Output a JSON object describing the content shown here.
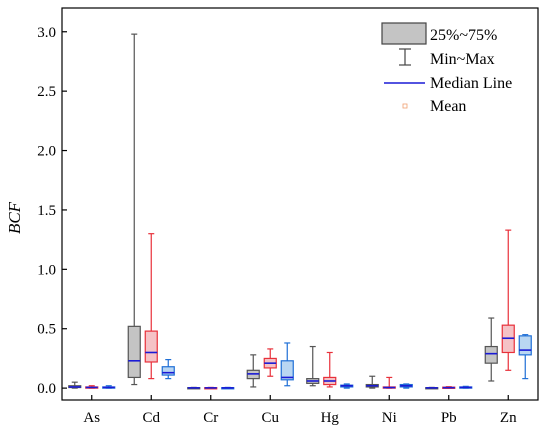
{
  "chart_data": {
    "type": "box",
    "ylabel": "BCF",
    "xlabel": "",
    "ylim": [
      -0.1,
      3.2
    ],
    "yticks": [
      "0.0",
      "0.5",
      "1.0",
      "1.5",
      "2.0",
      "2.5",
      "3.0"
    ],
    "categories": [
      "As",
      "Cd",
      "Cr",
      "Cu",
      "Hg",
      "Ni",
      "Pb",
      "Zn"
    ],
    "series_colors": [
      "#555555",
      "#e8303a",
      "#1f6fd6"
    ],
    "series_fills": [
      "#c4c4c4",
      "#f5c2c6",
      "#b9d6f2"
    ],
    "median_color": "#1a1ad6",
    "boxes": [
      [
        {
          "min": 0.0,
          "q1": 0.005,
          "median": 0.01,
          "q3": 0.02,
          "max": 0.05
        },
        {
          "min": 0.0,
          "q1": 0.003,
          "median": 0.006,
          "q3": 0.01,
          "max": 0.02
        },
        {
          "min": 0.0,
          "q1": 0.003,
          "median": 0.006,
          "q3": 0.01,
          "max": 0.02
        }
      ],
      [
        {
          "min": 0.03,
          "q1": 0.09,
          "median": 0.23,
          "q3": 0.52,
          "max": 2.98
        },
        {
          "min": 0.08,
          "q1": 0.22,
          "median": 0.3,
          "q3": 0.48,
          "max": 1.3
        },
        {
          "min": 0.08,
          "q1": 0.11,
          "median": 0.13,
          "q3": 0.18,
          "max": 0.24
        }
      ],
      [
        {
          "min": 0.0,
          "q1": 0.001,
          "median": 0.002,
          "q3": 0.004,
          "max": 0.006
        },
        {
          "min": 0.0,
          "q1": 0.001,
          "median": 0.002,
          "q3": 0.004,
          "max": 0.006
        },
        {
          "min": 0.0,
          "q1": 0.001,
          "median": 0.002,
          "q3": 0.004,
          "max": 0.006
        }
      ],
      [
        {
          "min": 0.01,
          "q1": 0.08,
          "median": 0.12,
          "q3": 0.15,
          "max": 0.28
        },
        {
          "min": 0.1,
          "q1": 0.17,
          "median": 0.21,
          "q3": 0.25,
          "max": 0.33
        },
        {
          "min": 0.02,
          "q1": 0.07,
          "median": 0.09,
          "q3": 0.23,
          "max": 0.38
        }
      ],
      [
        {
          "min": 0.02,
          "q1": 0.04,
          "median": 0.06,
          "q3": 0.08,
          "max": 0.35
        },
        {
          "min": 0.01,
          "q1": 0.03,
          "median": 0.06,
          "q3": 0.09,
          "max": 0.3
        },
        {
          "min": 0.0,
          "q1": 0.01,
          "median": 0.02,
          "q3": 0.025,
          "max": 0.035
        }
      ],
      [
        {
          "min": 0.0,
          "q1": 0.01,
          "median": 0.02,
          "q3": 0.03,
          "max": 0.1
        },
        {
          "min": 0.0,
          "q1": 0.002,
          "median": 0.005,
          "q3": 0.01,
          "max": 0.09
        },
        {
          "min": 0.0,
          "q1": 0.01,
          "median": 0.02,
          "q3": 0.03,
          "max": 0.035
        }
      ],
      [
        {
          "min": 0.0,
          "q1": 0.001,
          "median": 0.002,
          "q3": 0.004,
          "max": 0.006
        },
        {
          "min": 0.0,
          "q1": 0.002,
          "median": 0.004,
          "q3": 0.008,
          "max": 0.012
        },
        {
          "min": 0.0,
          "q1": 0.003,
          "median": 0.006,
          "q3": 0.01,
          "max": 0.015
        }
      ],
      [
        {
          "min": 0.06,
          "q1": 0.21,
          "median": 0.29,
          "q3": 0.35,
          "max": 0.59
        },
        {
          "min": 0.15,
          "q1": 0.3,
          "median": 0.42,
          "q3": 0.53,
          "max": 1.33
        },
        {
          "min": 0.08,
          "q1": 0.28,
          "median": 0.32,
          "q3": 0.44,
          "max": 0.45
        }
      ]
    ],
    "legend": {
      "position": "top-right",
      "items": [
        "25%~75%",
        "Min~Max",
        "Median Line",
        "Mean"
      ]
    },
    "grid": false
  }
}
